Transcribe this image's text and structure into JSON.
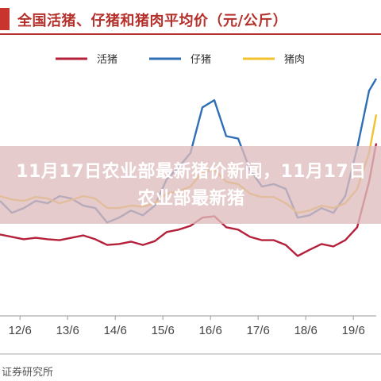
{
  "chart_title": "全国活猪、仔猪和猪肉平均价（元/公斤）",
  "overlay_text": "11月17日农业部最新猪价新闻，11月17日农业部最新猪",
  "source_text": "证券研究所",
  "colors": {
    "live_hog": "#b5203a",
    "piglet": "#2e6fb5",
    "pork": "#f2c12e",
    "title": "#b5302a"
  },
  "chart_data": {
    "type": "line",
    "xlabel": "",
    "ylabel": "",
    "x_ticks": [
      "12/6",
      "13/6",
      "14/6",
      "15/6",
      "16/6",
      "17/6",
      "18/6",
      "19/6"
    ],
    "x": [
      2012.0,
      2012.25,
      2012.5,
      2012.75,
      2013.0,
      2013.25,
      2013.5,
      2013.75,
      2014.0,
      2014.25,
      2014.5,
      2014.75,
      2015.0,
      2015.25,
      2015.5,
      2015.75,
      2016.0,
      2016.25,
      2016.5,
      2016.75,
      2017.0,
      2017.25,
      2017.5,
      2017.75,
      2018.0,
      2018.25,
      2018.5,
      2018.75,
      2019.0,
      2019.25,
      2019.5,
      2019.75,
      2019.9
    ],
    "xlim": [
      2012.0,
      2019.9
    ],
    "ylim": [
      0,
      50
    ],
    "legend": "top",
    "grid": false,
    "series": [
      {
        "name": "活猪",
        "color": "#b5203a",
        "values": [
          16.0,
          15.5,
          15.0,
          15.3,
          15.0,
          14.8,
          15.3,
          15.8,
          15.0,
          13.8,
          14.0,
          14.5,
          13.8,
          14.6,
          16.5,
          17.0,
          17.8,
          19.5,
          19.8,
          17.5,
          17.0,
          15.5,
          14.8,
          14.8,
          13.8,
          11.5,
          12.8,
          14.0,
          13.5,
          14.8,
          17.5,
          27.0,
          35.0
        ]
      },
      {
        "name": "仔猪",
        "color": "#2e6fb5",
        "values": [
          23.0,
          20.5,
          21.5,
          23.0,
          22.5,
          24.0,
          23.5,
          22.0,
          21.5,
          18.5,
          19.5,
          21.0,
          20.0,
          22.0,
          27.5,
          30.0,
          33.0,
          42.5,
          44.0,
          36.5,
          36.0,
          29.5,
          26.0,
          26.5,
          25.5,
          19.5,
          20.0,
          21.5,
          20.5,
          24.0,
          34.0,
          46.0,
          48.5
        ]
      },
      {
        "name": "猪肉",
        "color": "#f2c12e",
        "values": [
          24.0,
          23.3,
          23.0,
          23.8,
          23.5,
          22.5,
          23.2,
          24.0,
          23.5,
          21.5,
          21.5,
          22.0,
          21.8,
          22.5,
          24.5,
          25.0,
          26.0,
          29.0,
          29.5,
          27.0,
          26.5,
          24.5,
          23.8,
          23.8,
          22.5,
          20.5,
          21.0,
          22.0,
          21.5,
          22.5,
          25.5,
          33.0,
          41.0
        ]
      }
    ]
  }
}
